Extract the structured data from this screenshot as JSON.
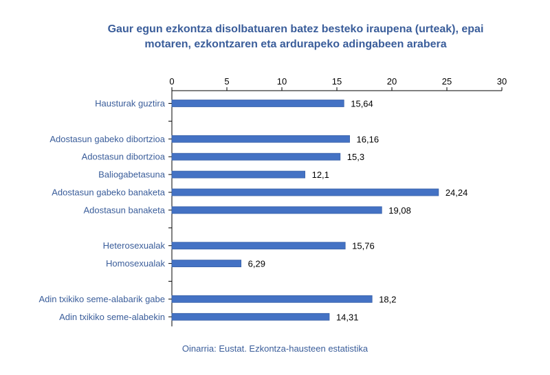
{
  "title_line1": "Gaur egun ezkontza disolbatuaren batez besteko iraupena (urteak), epai",
  "title_line2": "motaren, ezkontzaren eta ardurapeko adingabeen arabera",
  "source": "Oinarria: Eustat. Ezkontza-hausteen estatistika",
  "colors": {
    "bar": "#4472c4",
    "bar_edge": "#3a62a8",
    "label": "#3a5d9a",
    "axis": "#000000"
  },
  "chart_data": {
    "type": "bar",
    "orientation": "horizontal",
    "title": "Gaur egun ezkontza disolbatuaren batez besteko iraupena (urteak), epai motaren, ezkontzaren eta ardurapeko adingabeen arabera",
    "xlabel": "",
    "ylabel": "",
    "xlim": [
      0,
      30
    ],
    "ticks": [
      0,
      5,
      10,
      15,
      20,
      25,
      30
    ],
    "tick_labels": [
      "0",
      "5",
      "10",
      "15",
      "20",
      "25",
      "30"
    ],
    "axis_position": "top",
    "grid": false,
    "categories": [
      "Hausturak guztira",
      "",
      "Adostasun gabeko dibortzioa",
      "Adostasun dibortzioa",
      "Baliogabetasuna",
      "Adostasun gabeko banaketa",
      "Adostasun banaketa",
      "",
      "Heterosexualak",
      "Homosexualak",
      "",
      "Adin txikiko seme-alabarik gabe",
      "Adin txikiko seme-alabekin"
    ],
    "values": [
      15.64,
      null,
      16.16,
      15.3,
      12.1,
      24.24,
      19.08,
      null,
      15.76,
      6.29,
      null,
      18.2,
      14.31
    ],
    "value_labels": [
      "15,64",
      "",
      "16,16",
      "15,3",
      "12,1",
      "24,24",
      "19,08",
      "",
      "15,76",
      "6,29",
      "",
      "18,2",
      "14,31"
    ]
  }
}
